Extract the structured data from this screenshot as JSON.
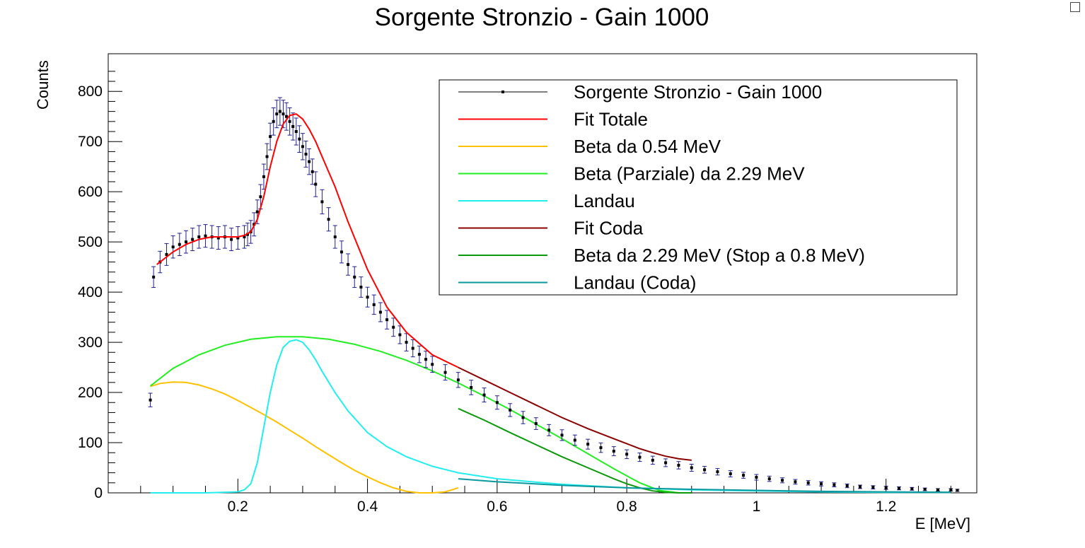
{
  "chart_data": {
    "type": "line",
    "title": "Sorgente Stronzio - Gain 1000",
    "xlabel": "E [MeV]",
    "ylabel": "Counts",
    "xlim": [
      0.0,
      1.34
    ],
    "ylim": [
      0,
      875
    ],
    "x_ticks": [
      0.2,
      0.4,
      0.6,
      0.8,
      1.0,
      1.2
    ],
    "x_tick_labels": [
      "0.2",
      "0.4",
      "0.6",
      "0.8",
      "1",
      "1.2"
    ],
    "y_ticks": [
      0,
      100,
      200,
      300,
      400,
      500,
      600,
      700,
      800
    ],
    "y_tick_labels": [
      "0",
      "100",
      "200",
      "300",
      "400",
      "500",
      "600",
      "700",
      "800"
    ],
    "grid": false,
    "legend_position": "top-right",
    "colors": {
      "data": "#000000",
      "error_bars": "#1f1f8f",
      "fit_totale": "#ff0000",
      "beta_054": "#ffc000",
      "beta_parziale": "#22ee22",
      "landau": "#22eeee",
      "fit_coda": "#8b0000",
      "beta_stop": "#0a990a",
      "landau_coda": "#0a99a0"
    },
    "series": [
      {
        "name": "Sorgente Stronzio - Gain 1000",
        "kind": "data",
        "x": [
          0.065,
          0.07,
          0.08,
          0.09,
          0.1,
          0.11,
          0.12,
          0.13,
          0.14,
          0.15,
          0.16,
          0.17,
          0.18,
          0.19,
          0.2,
          0.21,
          0.215,
          0.22,
          0.225,
          0.23,
          0.235,
          0.24,
          0.245,
          0.25,
          0.255,
          0.26,
          0.265,
          0.27,
          0.275,
          0.28,
          0.285,
          0.29,
          0.295,
          0.3,
          0.305,
          0.31,
          0.315,
          0.32,
          0.33,
          0.34,
          0.35,
          0.36,
          0.37,
          0.38,
          0.39,
          0.4,
          0.41,
          0.42,
          0.43,
          0.44,
          0.45,
          0.46,
          0.47,
          0.48,
          0.49,
          0.5,
          0.52,
          0.54,
          0.56,
          0.58,
          0.6,
          0.62,
          0.64,
          0.66,
          0.68,
          0.7,
          0.72,
          0.74,
          0.76,
          0.78,
          0.8,
          0.82,
          0.84,
          0.86,
          0.88,
          0.9,
          0.92,
          0.94,
          0.96,
          0.98,
          1.0,
          1.02,
          1.04,
          1.06,
          1.08,
          1.1,
          1.12,
          1.14,
          1.16,
          1.18,
          1.2,
          1.22,
          1.24,
          1.26,
          1.28,
          1.3,
          1.31
        ],
        "y": [
          185,
          430,
          460,
          475,
          490,
          495,
          500,
          505,
          510,
          512,
          510,
          508,
          510,
          505,
          508,
          510,
          515,
          520,
          535,
          560,
          590,
          630,
          670,
          710,
          740,
          755,
          760,
          755,
          750,
          740,
          730,
          720,
          705,
          690,
          675,
          660,
          640,
          615,
          580,
          545,
          510,
          480,
          455,
          430,
          410,
          390,
          375,
          360,
          345,
          330,
          315,
          300,
          288,
          276,
          266,
          256,
          240,
          225,
          210,
          195,
          180,
          165,
          150,
          138,
          125,
          115,
          105,
          97,
          90,
          83,
          77,
          71,
          65,
          60,
          55,
          50,
          46,
          42,
          38,
          35,
          31,
          28,
          25,
          22,
          20,
          18,
          16,
          14,
          12,
          11,
          10,
          9,
          8,
          7,
          6,
          6,
          5
        ]
      },
      {
        "name": "Fit Totale",
        "kind": "curve",
        "x": [
          0.075,
          0.1,
          0.12,
          0.14,
          0.16,
          0.18,
          0.2,
          0.21,
          0.22,
          0.23,
          0.24,
          0.25,
          0.26,
          0.27,
          0.28,
          0.29,
          0.3,
          0.31,
          0.32,
          0.33,
          0.35,
          0.37,
          0.4,
          0.43,
          0.46,
          0.5,
          0.54
        ],
        "y": [
          455,
          480,
          495,
          505,
          510,
          510,
          510,
          513,
          520,
          545,
          590,
          650,
          700,
          735,
          752,
          755,
          745,
          725,
          700,
          670,
          610,
          540,
          445,
          370,
          320,
          275,
          250
        ]
      },
      {
        "name": "Beta da 0.54 MeV",
        "kind": "curve",
        "x": [
          0.065,
          0.08,
          0.1,
          0.12,
          0.14,
          0.16,
          0.18,
          0.2,
          0.22,
          0.24,
          0.26,
          0.28,
          0.3,
          0.32,
          0.34,
          0.36,
          0.38,
          0.4,
          0.42,
          0.44,
          0.46,
          0.48,
          0.5,
          0.52,
          0.54
        ],
        "y": [
          212,
          218,
          221,
          220,
          215,
          207,
          197,
          184,
          170,
          156,
          141,
          125,
          109,
          92,
          76,
          60,
          45,
          32,
          20,
          10,
          3,
          0,
          0,
          2,
          10
        ]
      },
      {
        "name": "Beta (Parziale) da 2.29 MeV",
        "kind": "curve",
        "x": [
          0.065,
          0.1,
          0.14,
          0.18,
          0.22,
          0.26,
          0.3,
          0.34,
          0.38,
          0.42,
          0.46,
          0.5,
          0.54,
          0.58,
          0.62,
          0.66,
          0.7,
          0.74,
          0.78,
          0.8,
          0.82,
          0.85,
          0.88
        ],
        "y": [
          213,
          248,
          275,
          294,
          306,
          311,
          311,
          306,
          296,
          282,
          264,
          243,
          219,
          193,
          166,
          137,
          108,
          78,
          48,
          34,
          20,
          5,
          0
        ]
      },
      {
        "name": "Landau",
        "kind": "curve",
        "x": [
          0.065,
          0.1,
          0.15,
          0.2,
          0.21,
          0.22,
          0.23,
          0.24,
          0.25,
          0.26,
          0.27,
          0.28,
          0.29,
          0.3,
          0.31,
          0.32,
          0.33,
          0.35,
          0.37,
          0.4,
          0.43,
          0.46,
          0.5,
          0.54,
          0.6,
          0.7,
          0.8,
          0.9,
          1.0,
          1.1,
          1.2,
          1.3
        ],
        "y": [
          0,
          0,
          0,
          2,
          6,
          18,
          60,
          130,
          200,
          255,
          290,
          302,
          305,
          300,
          285,
          265,
          242,
          200,
          163,
          120,
          92,
          72,
          53,
          40,
          28,
          17,
          10,
          6,
          4,
          2,
          1,
          1
        ]
      },
      {
        "name": "Fit Coda",
        "kind": "curve",
        "x": [
          0.54,
          0.58,
          0.62,
          0.66,
          0.7,
          0.74,
          0.78,
          0.8,
          0.82,
          0.84,
          0.86,
          0.88,
          0.9
        ],
        "y": [
          250,
          225,
          200,
          175,
          150,
          128,
          108,
          98,
          88,
          80,
          73,
          68,
          65
        ]
      },
      {
        "name": "Beta da 2.29 MeV (Stop a 0.8 MeV)",
        "kind": "curve",
        "x": [
          0.54,
          0.58,
          0.62,
          0.66,
          0.7,
          0.74,
          0.78,
          0.8,
          0.82,
          0.84,
          0.86,
          0.88,
          0.9
        ],
        "y": [
          168,
          145,
          120,
          96,
          72,
          50,
          28,
          18,
          10,
          4,
          1,
          0,
          0
        ]
      },
      {
        "name": "Landau (Coda)",
        "kind": "curve",
        "x": [
          0.54,
          0.6,
          0.7,
          0.8,
          0.9,
          1.0,
          1.1,
          1.2,
          1.3
        ],
        "y": [
          28,
          22,
          15,
          10,
          7,
          5,
          3,
          2,
          1
        ]
      }
    ]
  }
}
